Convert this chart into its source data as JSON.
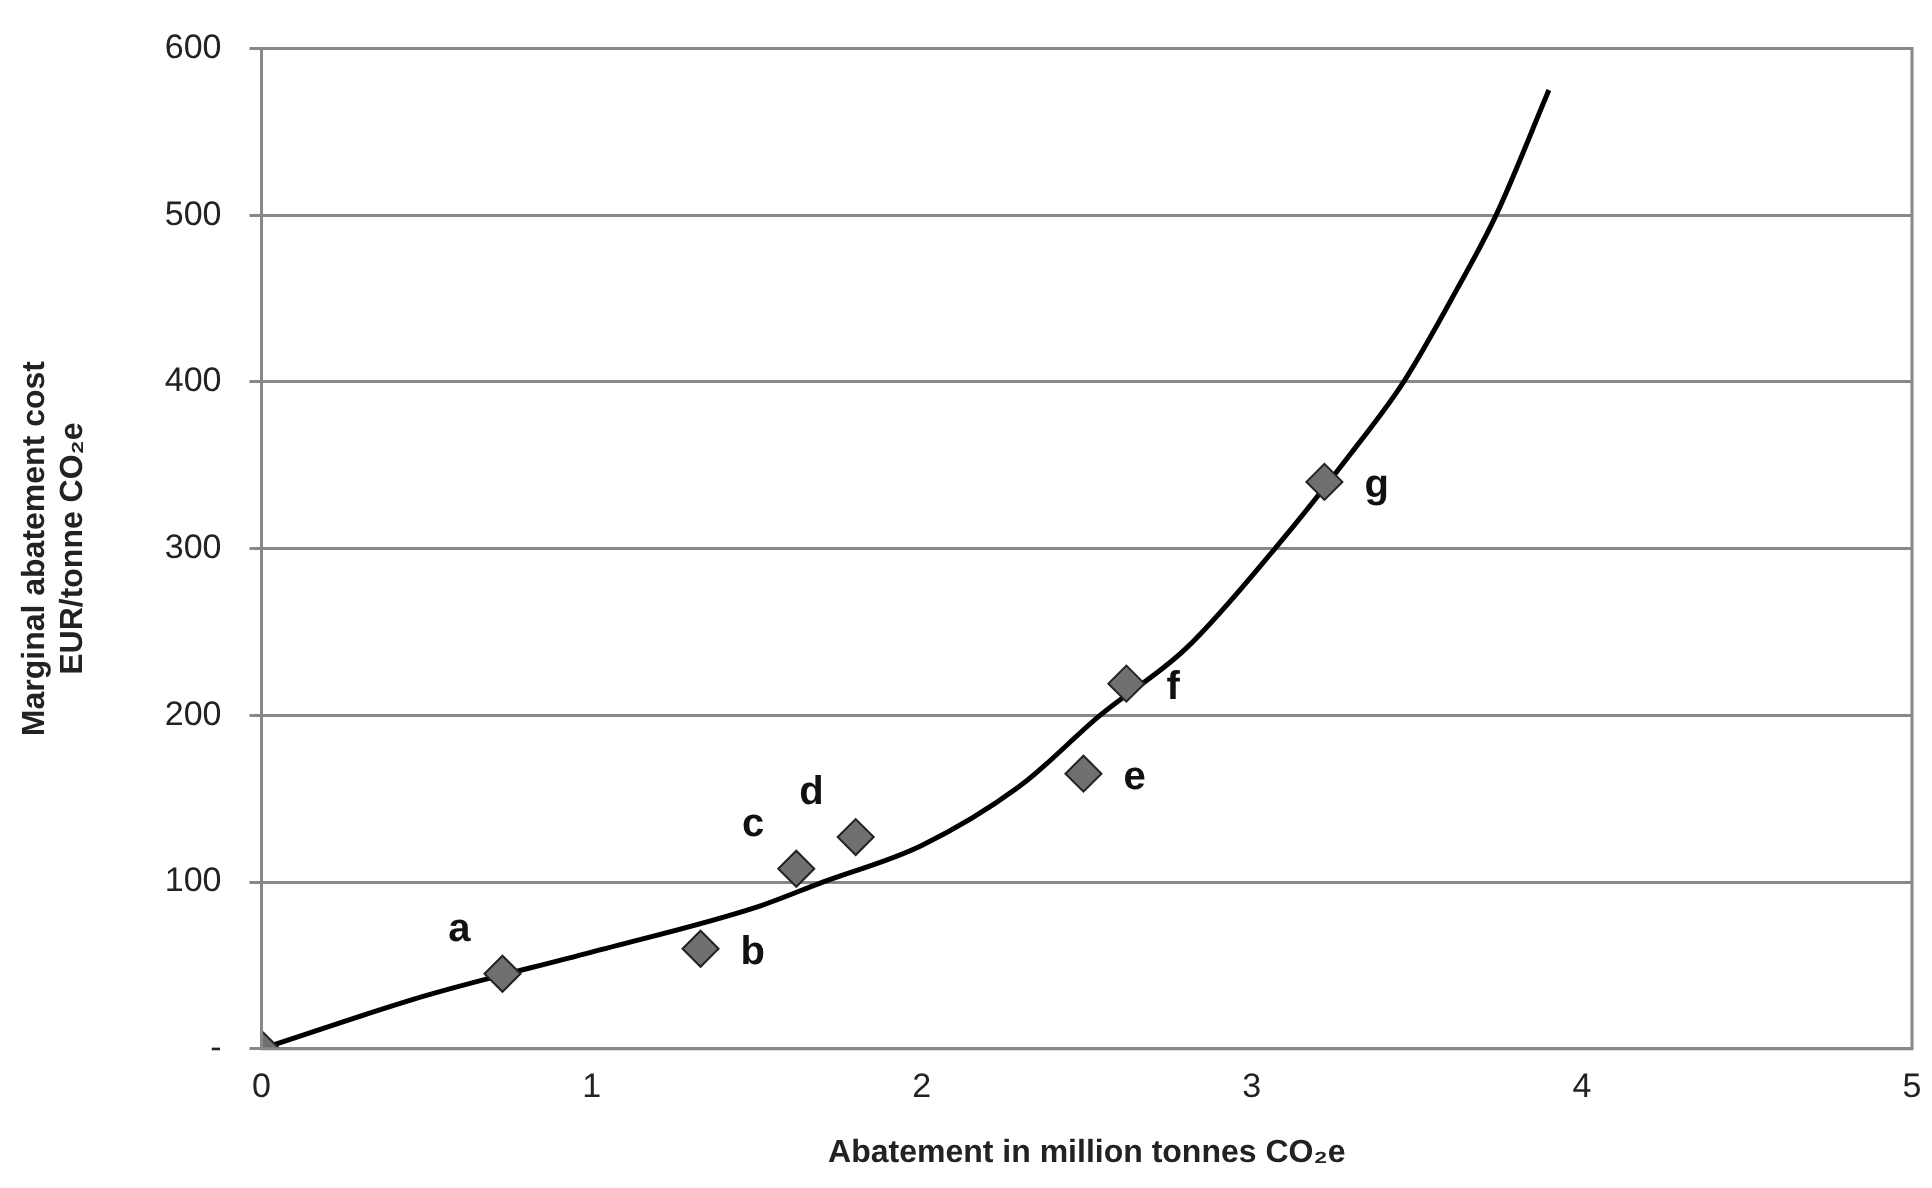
{
  "chart_data": {
    "type": "scatter",
    "xlabel": "Abatement in million tonnes CO₂e",
    "ylabel": "Marginal abatement cost\nEUR/tonne CO₂e",
    "series": [
      {
        "type": "scatter",
        "color": "#707070",
        "marker": "diamond",
        "x": [
          0,
          0.73,
          1.33,
          1.62,
          1.8,
          2.49,
          2.62,
          3.22
        ],
        "values": [
          0,
          45,
          60,
          108,
          127,
          165,
          219,
          340
        ]
      },
      {
        "type": "line",
        "color": "#000000",
        "marker": "none",
        "x": [
          0,
          0.5,
          1,
          1.5,
          1.7,
          2,
          2.3,
          2.54,
          2.8,
          3.07,
          3.3,
          3.46,
          3.62,
          3.74,
          3.9
        ],
        "values": [
          0,
          32,
          58,
          85,
          100,
          122,
          158,
          200,
          240,
          300,
          357,
          400,
          455,
          500,
          575
        ]
      }
    ],
    "annotations": [
      {
        "text": "a",
        "x": 0.73,
        "y": 45
      },
      {
        "text": "b",
        "x": 1.33,
        "y": 60
      },
      {
        "text": "c",
        "x": 1.62,
        "y": 108
      },
      {
        "text": "d",
        "x": 1.8,
        "y": 127
      },
      {
        "text": "e",
        "x": 2.49,
        "y": 165
      },
      {
        "text": "f",
        "x": 2.62,
        "y": 219
      },
      {
        "text": "g",
        "x": 3.22,
        "y": 340
      }
    ],
    "xlim": [
      0,
      5
    ],
    "xticks": [
      0,
      1,
      2,
      3,
      4,
      5
    ],
    "ylim": [
      0,
      600
    ],
    "yticks": [
      {
        "value": 0,
        "label": "-"
      },
      100,
      200,
      300,
      400,
      500,
      600
    ],
    "grid": "y",
    "legend": false
  }
}
